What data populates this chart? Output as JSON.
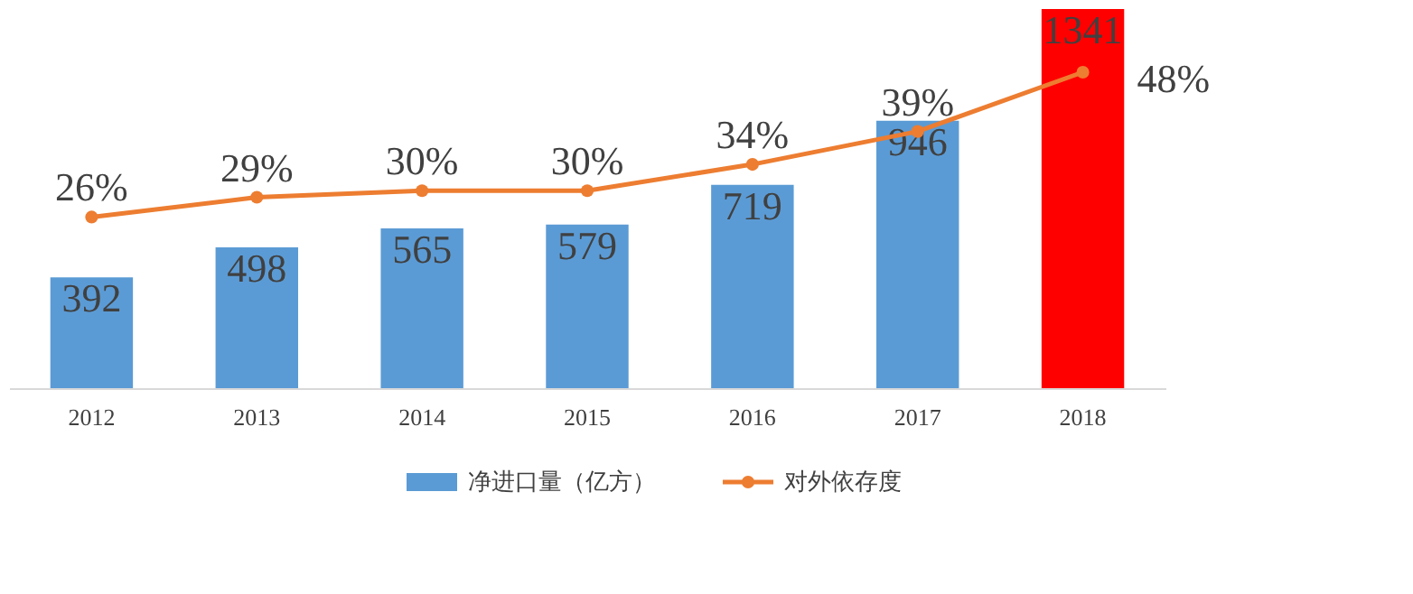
{
  "chart_data": {
    "type": "bar",
    "categories": [
      "2012",
      "2013",
      "2014",
      "2015",
      "2016",
      "2017",
      "2018"
    ],
    "data_labels": true,
    "legend": "bottom",
    "grid": false,
    "tick_labels": "x",
    "series": [
      {
        "name": "净进口量（亿方）",
        "color": "#5b9bd5",
        "colors": [
          "#5b9bd5",
          "#5b9bd5",
          "#5b9bd5",
          "#5b9bd5",
          "#5b9bd5",
          "#5b9bd5",
          "#ff0000"
        ],
        "values": [
          392,
          498,
          565,
          579,
          719,
          946,
          1341
        ]
      },
      {
        "name": "对外依存度",
        "type": "line",
        "axis": "y2",
        "color": "#ed7d31",
        "marker": "circle",
        "values": [
          26,
          29,
          30,
          30,
          34,
          39,
          48
        ],
        "value_labels": [
          "26%",
          "29%",
          "30%",
          "30%",
          "34%",
          "39%",
          "48%"
        ]
      }
    ]
  }
}
